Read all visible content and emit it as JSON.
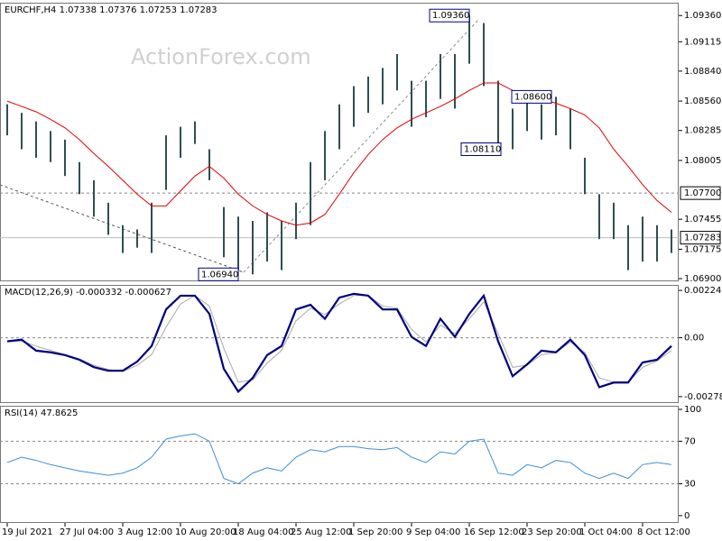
{
  "chart_data": [
    {
      "type": "ohlc",
      "title": "EURCHF,H4  1.07338 1.07376 1.07253 1.07283",
      "watermark": "ActionForex.com",
      "color": "#2f4f4f",
      "high": [
        1.0853,
        1.0845,
        1.0837,
        1.0828,
        1.082,
        1.0799,
        1.0782,
        1.0761,
        1.074,
        1.0736,
        1.0761,
        1.0824,
        1.0832,
        1.0837,
        1.0811,
        1.0757,
        1.0748,
        1.0744,
        1.0752,
        1.0744,
        1.0761,
        1.0799,
        1.0828,
        1.0853,
        1.087,
        1.0879,
        1.0887,
        1.09,
        1.0875,
        1.0875,
        1.09,
        1.09,
        1.0936,
        1.0929,
        1.0875,
        1.0849,
        1.0862,
        1.0853,
        1.086,
        1.0849,
        1.0803,
        1.0769,
        1.0761,
        1.074,
        1.0748,
        1.074,
        1.0736
      ],
      "low": [
        1.0824,
        1.0811,
        1.0803,
        1.0799,
        1.0786,
        1.0769,
        1.0748,
        1.0731,
        1.0714,
        1.0719,
        1.0714,
        1.0773,
        1.0803,
        1.0816,
        1.0782,
        1.071,
        1.0698,
        1.0694,
        1.0706,
        1.0698,
        1.0727,
        1.074,
        1.0782,
        1.0811,
        1.0832,
        1.0845,
        1.0853,
        1.0866,
        1.0832,
        1.0841,
        1.0858,
        1.0849,
        1.0891,
        1.087,
        1.0816,
        1.0811,
        1.0828,
        1.082,
        1.0824,
        1.0811,
        1.0769,
        1.0727,
        1.0727,
        1.0698,
        1.0706,
        1.0706,
        1.0714
      ],
      "overlay": {
        "color": "#e00000",
        "values": [
          1.0856,
          1.0851,
          1.0846,
          1.0839,
          1.0831,
          1.082,
          1.0807,
          1.0795,
          1.0782,
          1.0769,
          1.0758,
          1.0758,
          1.0772,
          1.0786,
          1.0795,
          1.0784,
          1.0769,
          1.0758,
          1.075,
          1.0744,
          1.074,
          1.0742,
          1.075,
          1.0769,
          1.0789,
          1.0806,
          1.082,
          1.0831,
          1.0839,
          1.0845,
          1.0851,
          1.0858,
          1.0866,
          1.0873,
          1.0873,
          1.0866,
          1.0861,
          1.0858,
          1.0854,
          1.0849,
          1.0843,
          1.0831,
          1.0811,
          1.0795,
          1.0778,
          1.0763,
          1.0752
        ]
      },
      "ylim": [
        1.06875,
        1.0948
      ],
      "yticks": [
        {
          "value": 1.0936,
          "label": "1.09360"
        },
        1.09115,
        {
          "value": 1.0884,
          "label": "1.08840"
        },
        {
          "value": 1.0856,
          "label": "1.08560"
        },
        1.08285,
        1.08005,
        1.07455,
        1.07175,
        {
          "value": 1.069,
          "label": "1.06900"
        }
      ],
      "levels": [
        {
          "value": 1.077,
          "label": "1.07700"
        }
      ],
      "last_price": 1.07283,
      "annotations": [
        {
          "value": 1.0936,
          "label": "1.09360"
        },
        {
          "value": 1.086,
          "label": "1.08600"
        },
        {
          "value": 1.0811,
          "label": "1.08110"
        },
        {
          "value": 1.0694,
          "label": "1.06940"
        }
      ]
    },
    {
      "type": "macd",
      "title": "MACD(12,26,9) -0.000332 -0.000627",
      "series": [
        {
          "color": "#00007f",
          "values": [
            -0.00017,
            -9e-05,
            -0.00061,
            -0.00069,
            -0.00082,
            -0.00104,
            -0.00139,
            -0.00156,
            -0.00156,
            -0.00113,
            -0.00039,
            0.00134,
            0.00199,
            0.00199,
            0.00113,
            -0.00147,
            -0.00255,
            -0.0019,
            -0.00082,
            -0.00039,
            0.00134,
            0.00156,
            0.0009,
            0.0019,
            0.00208,
            0.00199,
            0.00134,
            0.00134,
            4e-05,
            -0.00039,
            0.0009,
            4e-05,
            0.00113,
            0.00199,
            -0.00017,
            -0.00182,
            -0.00126,
            -0.00061,
            -0.00069,
            -9e-05,
            -0.00082,
            -0.00234,
            -0.00212,
            -0.00212,
            -0.00117,
            -0.00104,
            -0.00039
          ]
        },
        {
          "color": "#a9a9a9",
          "values": [
            -0.0002,
            -0.00015,
            -0.0004,
            -0.0006,
            -0.0008,
            -0.001,
            -0.0013,
            -0.0015,
            -0.0016,
            -0.0013,
            -0.0008,
            0.0005,
            0.0016,
            0.002,
            0.0015,
            -0.0005,
            -0.0021,
            -0.002,
            -0.0012,
            -0.0006,
            0.0008,
            0.0014,
            0.0011,
            0.0016,
            0.002,
            0.002,
            0.0015,
            0.0014,
            0.0004,
            -0.0002,
            0.0006,
            0.0002,
            0.0009,
            0.0017,
            0.0002,
            -0.0014,
            -0.0013,
            -0.0008,
            -0.0007,
            -0.0002,
            -0.0007,
            -0.0019,
            -0.0021,
            -0.0021,
            -0.0014,
            -0.0011,
            -0.0006
          ]
        }
      ],
      "ylim": [
        -0.00309,
        0.0025
      ],
      "yticks": [
        0.00224,
        {
          "value": 0,
          "label": "0.00"
        },
        -0.002785
      ],
      "levels": [
        0
      ]
    },
    {
      "type": "rsi",
      "title": "RSI(14) 47.8625",
      "series": [
        {
          "color": "#3b8fd9",
          "values": [
            50,
            55,
            52,
            48,
            45,
            42,
            40,
            38,
            40,
            45,
            55,
            72,
            75,
            77,
            70,
            35,
            30,
            40,
            45,
            42,
            55,
            62,
            60,
            65,
            65,
            63,
            62,
            64,
            55,
            50,
            60,
            58,
            70,
            72,
            40,
            38,
            48,
            45,
            52,
            50,
            40,
            35,
            40,
            35,
            48,
            50,
            48
          ]
        }
      ],
      "ylim": [
        -6.9,
        103.4
      ],
      "yticks": [
        100,
        70,
        30,
        0
      ],
      "levels": [
        70,
        30
      ],
      "categories": [
        "19 Jul 2021",
        null,
        null,
        null,
        "27 Jul 04:00",
        null,
        null,
        null,
        "3 Aug 12:00",
        null,
        null,
        null,
        "10 Aug 20:00",
        null,
        null,
        null,
        "18 Aug 04:00",
        null,
        null,
        null,
        "25 Aug 12:00",
        null,
        null,
        null,
        "1 Sep 20:00",
        null,
        null,
        null,
        "9 Sep 04:00",
        null,
        null,
        null,
        "16 Sep 12:00",
        null,
        null,
        null,
        "23 Sep 20:00",
        null,
        null,
        null,
        "1 Oct 04:00",
        null,
        null,
        null,
        "8 Oct 12:00",
        null,
        null
      ]
    }
  ]
}
